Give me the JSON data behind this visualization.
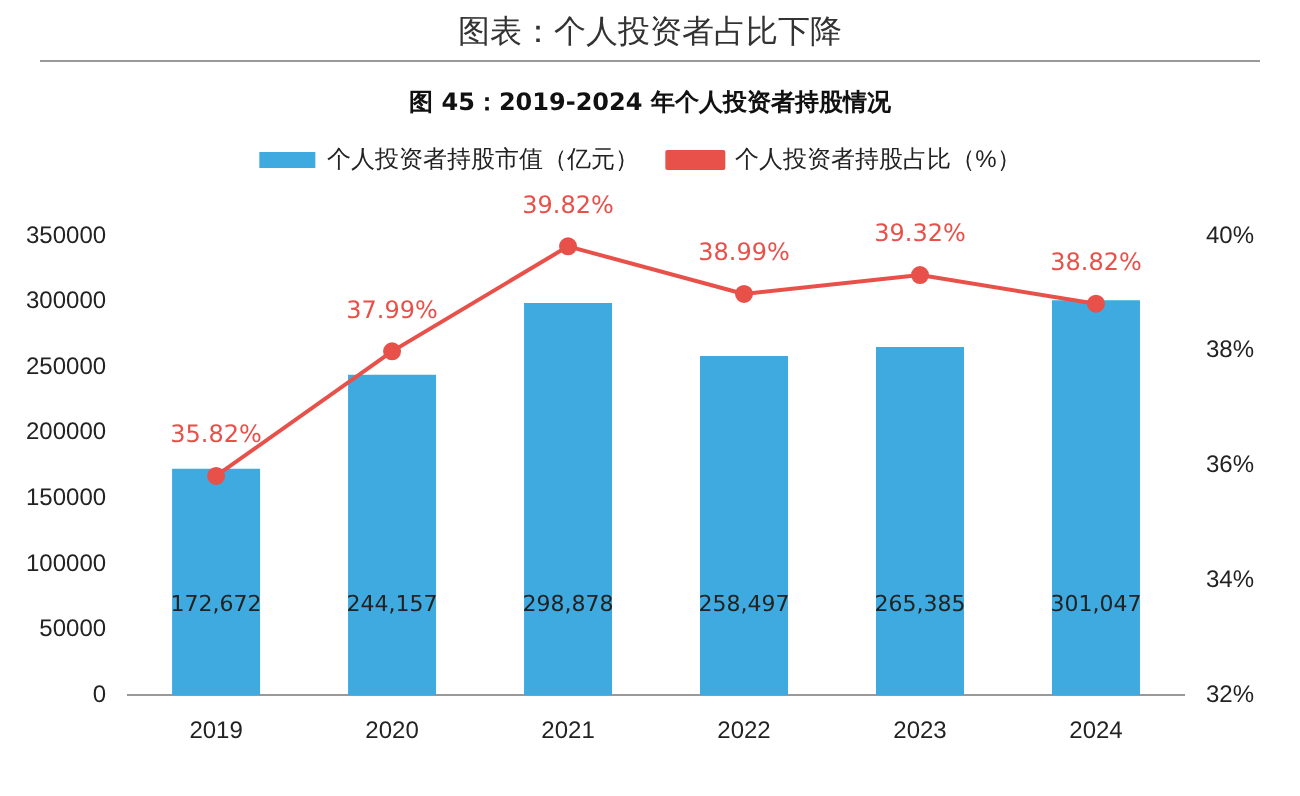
{
  "chart_data": {
    "type": "bar",
    "title": "图表：个人投资者占比下降",
    "subtitle": "图 45：2019-2024 年个人投资者持股情况",
    "categories": [
      "2019",
      "2020",
      "2021",
      "2022",
      "2023",
      "2024"
    ],
    "series": [
      {
        "name": "个人投资者持股市值（亿元）",
        "color": "#3eaadf",
        "values": [
          172672,
          244157,
          298878,
          258497,
          265385,
          301047
        ],
        "value_labels": [
          "172,672",
          "244,157",
          "298,878",
          "258,497",
          "265,385",
          "301,047"
        ]
      },
      {
        "name": "个人投资者持股占比（%）",
        "type": "line",
        "axis": "y2",
        "color": "#e8504a",
        "values": [
          35.82,
          37.99,
          39.82,
          38.99,
          39.32,
          38.82
        ],
        "value_labels": [
          "35.82%",
          "37.99%",
          "39.82%",
          "38.99%",
          "39.32%",
          "38.82%"
        ]
      }
    ],
    "ylim": [
      0,
      350000
    ],
    "yticks": [
      0,
      50000,
      100000,
      150000,
      200000,
      250000,
      300000,
      350000
    ],
    "y2lim": [
      32,
      40
    ],
    "y2ticks": [
      {
        "value": 32,
        "label": "32%"
      },
      {
        "value": 34,
        "label": "34%"
      },
      {
        "value": 36,
        "label": "36%"
      },
      {
        "value": 38,
        "label": "38%"
      },
      {
        "value": 40,
        "label": "40%"
      }
    ],
    "grid": false,
    "legend": "top",
    "marker": "circle",
    "line_style": "solid"
  }
}
